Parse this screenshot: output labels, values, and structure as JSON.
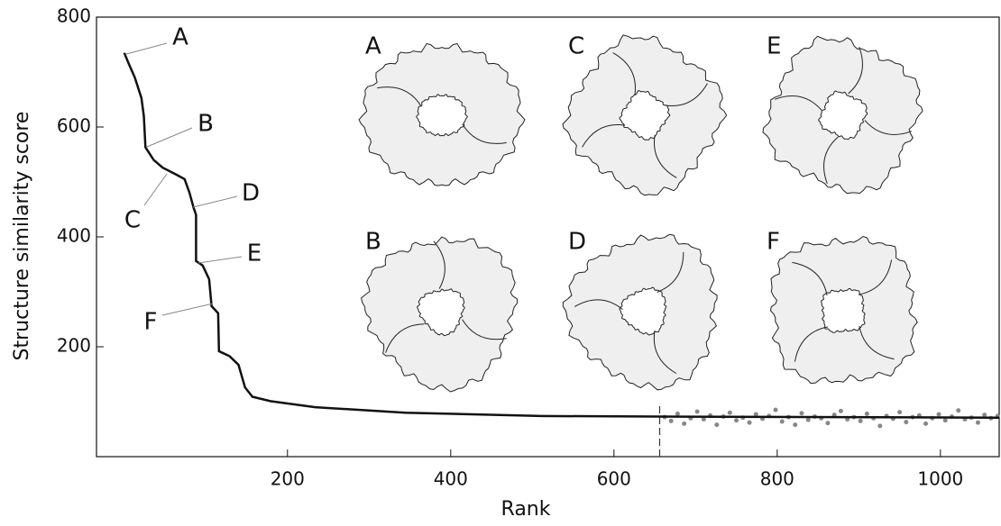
{
  "chart_data": {
    "type": "line",
    "xlabel": "Rank",
    "ylabel": "Structure similarity score",
    "xlim": [
      -34,
      1072
    ],
    "ylim": [
      0,
      800
    ],
    "xticks": [
      200,
      400,
      600,
      800,
      1000
    ],
    "yticks": [
      200,
      400,
      600,
      800
    ],
    "line": {
      "color": "#111111",
      "x": [
        0,
        5,
        13,
        21,
        24,
        26,
        36,
        47,
        63,
        74,
        80,
        85,
        88,
        88,
        96,
        104,
        107,
        115,
        116,
        129,
        140,
        148,
        157,
        179,
        234,
        345,
        511,
        656,
        1072
      ],
      "values": [
        735,
        717,
        690,
        653,
        620,
        563,
        540,
        526,
        514,
        505,
        480,
        453,
        440,
        356,
        348,
        323,
        274,
        261,
        192,
        183,
        167,
        126,
        109,
        101,
        90,
        80,
        74,
        73,
        71
      ]
    },
    "scatter": {
      "color": "#888888",
      "x": [
        662,
        670,
        678,
        686,
        694,
        702,
        710,
        718,
        726,
        734,
        742,
        750,
        758,
        766,
        774,
        782,
        790,
        798,
        806,
        814,
        822,
        830,
        838,
        846,
        854,
        862,
        870,
        878,
        886,
        894,
        902,
        910,
        918,
        926,
        934,
        942,
        950,
        958,
        966,
        974,
        982,
        990,
        998,
        1006,
        1014,
        1022,
        1030,
        1038,
        1046,
        1054,
        1062,
        1070
      ],
      "values": [
        72,
        65,
        78,
        60,
        70,
        82,
        68,
        75,
        58,
        73,
        80,
        66,
        71,
        62,
        77,
        69,
        74,
        85,
        64,
        72,
        58,
        79,
        67,
        73,
        70,
        61,
        76,
        83,
        68,
        72,
        65,
        78,
        70,
        56,
        74,
        69,
        81,
        63,
        72,
        75,
        60,
        70,
        77,
        66,
        73,
        84,
        68,
        71,
        62,
        76,
        70,
        74
      ]
    },
    "vline": 656,
    "annotations": [
      "A",
      "B",
      "C",
      "D",
      "E",
      "F"
    ],
    "insets": [
      "A",
      "C",
      "E",
      "B",
      "D",
      "F"
    ]
  }
}
